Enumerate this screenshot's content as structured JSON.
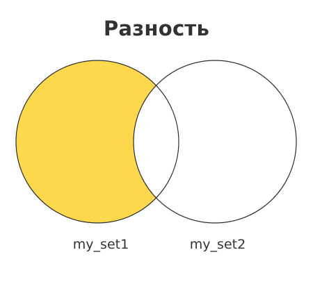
{
  "title": "Разность",
  "sets": [
    {
      "label": "my_set1",
      "role": "highlighted"
    },
    {
      "label": "my_set2",
      "role": "plain"
    }
  ],
  "colors": {
    "highlight": "#FDD84C",
    "background": "#FFFFFF",
    "stroke": "#2B2B2B",
    "title_text": "#333333",
    "label_text": "#333333"
  }
}
